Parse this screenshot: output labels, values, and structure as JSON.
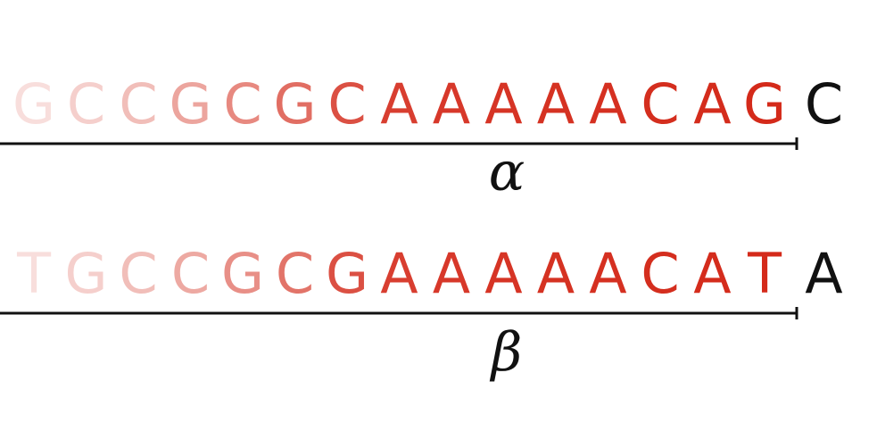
{
  "colors": {
    "highlight": "#d42a1a",
    "next_base": "#111111",
    "line": "#111111",
    "background": "#ffffff"
  },
  "sequences": [
    {
      "label": "α",
      "letters": [
        "G",
        "C",
        "C",
        "G",
        "C",
        "G",
        "C",
        "A",
        "A",
        "A",
        "A",
        "A",
        "C",
        "A",
        "G"
      ],
      "opacity": [
        0.15,
        0.22,
        0.3,
        0.42,
        0.55,
        0.68,
        0.82,
        0.9,
        0.93,
        0.95,
        0.96,
        0.97,
        0.98,
        0.99,
        1.0
      ],
      "next": "C"
    },
    {
      "label": "β",
      "letters": [
        "T",
        "G",
        "C",
        "C",
        "G",
        "C",
        "G",
        "A",
        "A",
        "A",
        "A",
        "A",
        "C",
        "A",
        "T"
      ],
      "opacity": [
        0.15,
        0.22,
        0.3,
        0.4,
        0.52,
        0.65,
        0.82,
        0.9,
        0.93,
        0.95,
        0.96,
        0.97,
        0.98,
        0.99,
        1.0
      ],
      "next": "A"
    }
  ]
}
